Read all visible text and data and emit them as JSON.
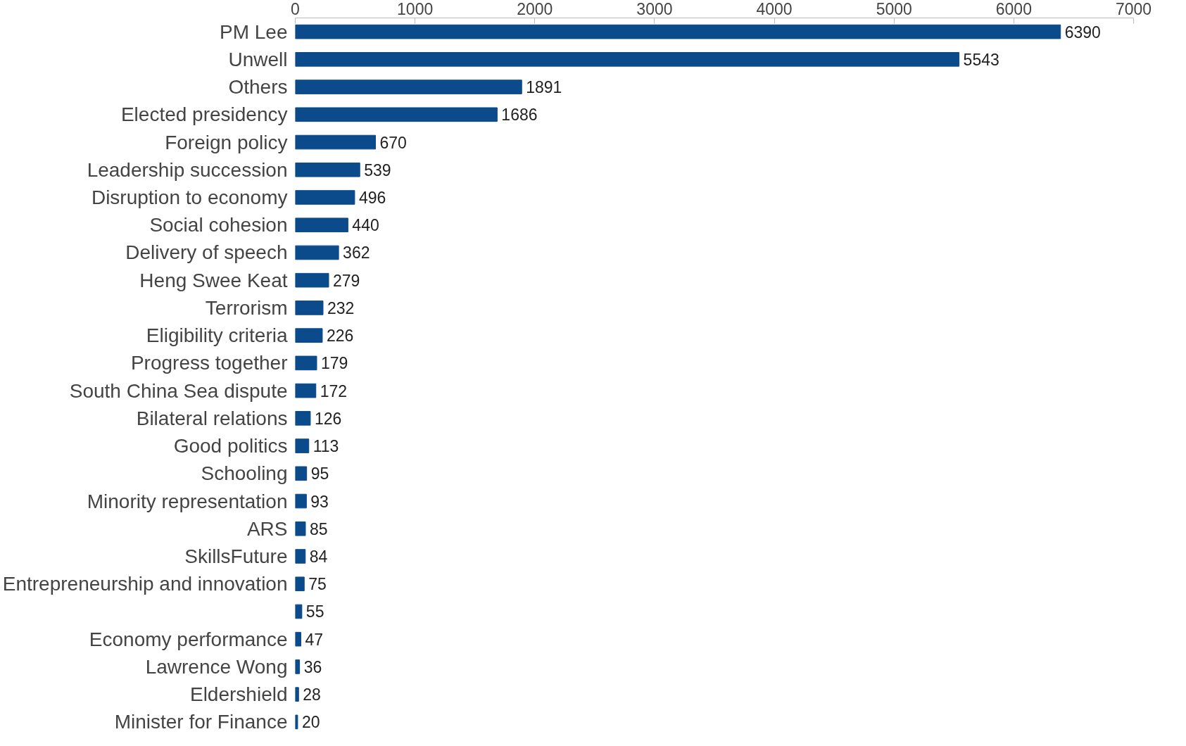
{
  "chart_data": {
    "type": "bar",
    "orientation": "horizontal",
    "categories": [
      "PM Lee",
      "Unwell",
      "Others",
      "Elected presidency",
      "Foreign policy",
      "Leadership succession",
      "Disruption to economy",
      "Social cohesion",
      "Delivery of speech",
      "Heng Swee Keat",
      "Terrorism",
      "Eligibility criteria",
      "Progress together",
      "South China Sea dispute",
      "Bilateral relations",
      "Good politics",
      "Schooling",
      "Minority representation",
      "ARS",
      "SkillsFuture",
      "Entrepreneurship and innovation",
      null,
      "Economy performance",
      "Lawrence Wong",
      "Eldershield",
      "Minister for Finance"
    ],
    "values": [
      6390,
      5543,
      1891,
      1686,
      670,
      539,
      496,
      440,
      362,
      279,
      232,
      226,
      179,
      172,
      126,
      113,
      95,
      93,
      85,
      84,
      75,
      55,
      47,
      36,
      28,
      20
    ],
    "color": "#0b4a8b",
    "xlim": [
      0,
      7000
    ],
    "xticks": [
      0,
      1000,
      2000,
      3000,
      4000,
      5000,
      6000,
      7000
    ],
    "grid": false,
    "data_labels": true
  }
}
